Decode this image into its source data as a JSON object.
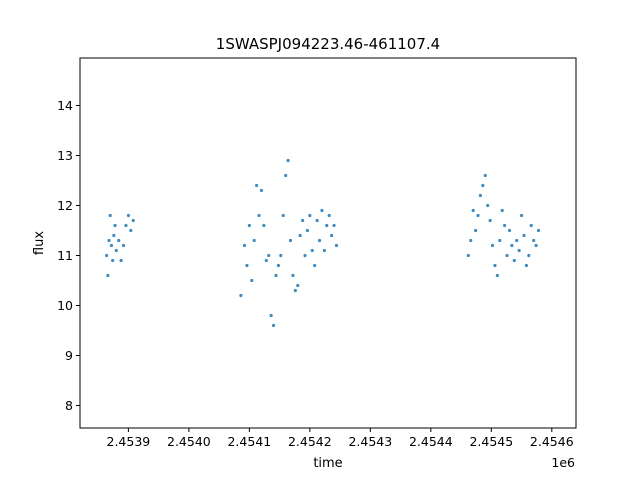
{
  "chart_data": {
    "type": "scatter",
    "title": "1SWASPJ094223.46-461107.4",
    "xlabel": "time",
    "ylabel": "flux",
    "x_offset_label": "1e6",
    "xlim": [
      2453820,
      2454640
    ],
    "ylim": [
      7.55,
      14.95
    ],
    "x_ticks": [
      2453900,
      2454000,
      2454100,
      2454200,
      2454300,
      2454400,
      2454500,
      2454600
    ],
    "x_tick_labels": [
      "2.4539",
      "2.4540",
      "2.4541",
      "2.4542",
      "2.4543",
      "2.4544",
      "2.4545",
      "2.4546"
    ],
    "y_ticks": [
      8,
      9,
      10,
      11,
      12,
      13,
      14
    ],
    "y_tick_labels": [
      "8",
      "9",
      "10",
      "11",
      "12",
      "13",
      "14"
    ],
    "grid": false,
    "legend": "none",
    "marker_color": "#1f77b4",
    "series": [
      {
        "x": [
          2453864,
          2453866,
          2453868,
          2453870,
          2453872,
          2453874,
          2453876,
          2453878,
          2453880,
          2453884,
          2453888,
          2453892,
          2453896,
          2453900,
          2453904,
          2453908,
          2454086,
          2454092,
          2454096,
          2454100,
          2454104,
          2454108,
          2454112,
          2454116,
          2454120,
          2454124,
          2454128,
          2454132,
          2454136,
          2454140,
          2454144,
          2454148,
          2454152,
          2454156,
          2454160,
          2454164,
          2454168,
          2454172,
          2454176,
          2454180,
          2454184,
          2454188,
          2454192,
          2454196,
          2454200,
          2454204,
          2454208,
          2454212,
          2454216,
          2454220,
          2454224,
          2454228,
          2454232,
          2454236,
          2454240,
          2454244,
          2454462,
          2454466,
          2454470,
          2454474,
          2454478,
          2454482,
          2454486,
          2454490,
          2454494,
          2454498,
          2454502,
          2454506,
          2454510,
          2454514,
          2454518,
          2454522,
          2454526,
          2454530,
          2454534,
          2454538,
          2454542,
          2454546,
          2454550,
          2454554,
          2454558,
          2454562,
          2454566,
          2454570,
          2454574,
          2454578
        ],
        "y": [
          11.0,
          10.6,
          11.3,
          11.8,
          11.2,
          10.9,
          11.4,
          11.6,
          11.1,
          11.3,
          10.9,
          11.2,
          11.6,
          11.8,
          11.5,
          11.7,
          10.2,
          11.2,
          10.8,
          11.6,
          10.5,
          11.3,
          12.4,
          11.8,
          12.3,
          11.6,
          10.9,
          11.0,
          9.8,
          9.6,
          10.6,
          10.8,
          11.0,
          11.8,
          12.6,
          12.9,
          11.3,
          10.6,
          10.3,
          10.4,
          11.4,
          11.7,
          11.0,
          11.5,
          11.8,
          11.1,
          10.8,
          11.7,
          11.3,
          11.9,
          11.1,
          11.6,
          11.8,
          11.4,
          11.6,
          11.2,
          11.0,
          11.3,
          11.9,
          11.5,
          11.8,
          12.2,
          12.4,
          12.6,
          12.0,
          11.7,
          11.2,
          10.8,
          10.6,
          11.3,
          11.9,
          11.6,
          11.0,
          11.5,
          11.2,
          10.9,
          11.3,
          11.1,
          11.8,
          11.4,
          10.8,
          11.0,
          11.6,
          11.3,
          11.2,
          11.5
        ]
      }
    ]
  }
}
